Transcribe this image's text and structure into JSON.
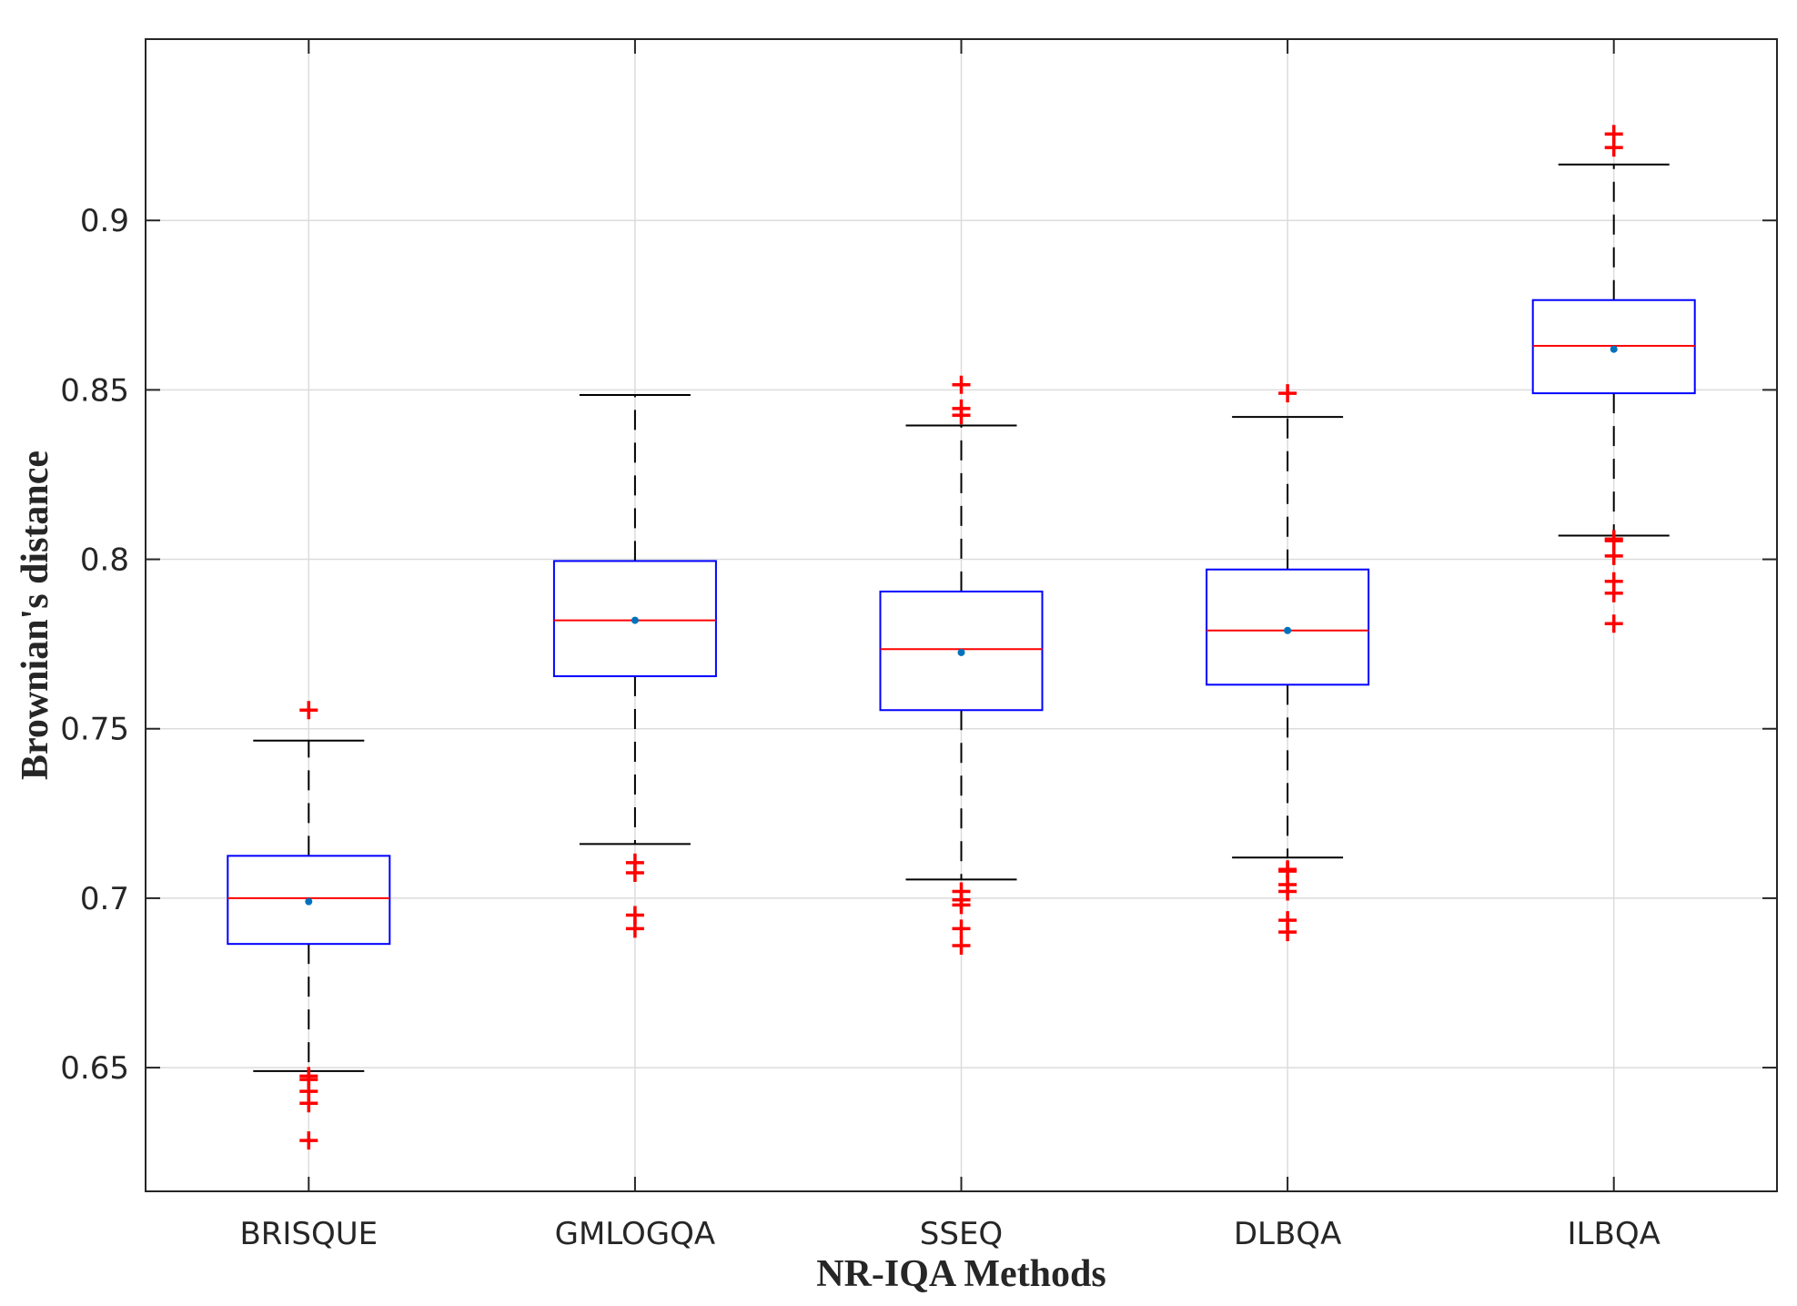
{
  "chart_data": {
    "type": "box",
    "title": "",
    "xlabel": "NR-IQA Methods",
    "ylabel": "Brownian's distance",
    "ylim": [
      0.6135,
      0.9535
    ],
    "yticks": [
      0.65,
      0.7,
      0.75,
      0.8,
      0.85,
      0.9
    ],
    "ytick_labels": [
      "0.65",
      "0.7",
      "0.75",
      "0.8",
      "0.85",
      "0.9"
    ],
    "grid": true,
    "categories": [
      "BRISQUE",
      "GMLOGQA",
      "SSEQ",
      "DLBQA",
      "ILBQA"
    ],
    "boxes": [
      {
        "whisker_low": 0.649,
        "q1": 0.6865,
        "median": 0.7,
        "mean": 0.699,
        "q3": 0.7125,
        "whisker_high": 0.7465,
        "outliers": [
          0.7555,
          0.6475,
          0.6465,
          0.643,
          0.6395,
          0.6285
        ]
      },
      {
        "whisker_low": 0.716,
        "q1": 0.7655,
        "median": 0.782,
        "mean": 0.782,
        "q3": 0.7995,
        "whisker_high": 0.8485,
        "outliers": [
          0.7105,
          0.7075,
          0.695,
          0.691
        ]
      },
      {
        "whisker_low": 0.7055,
        "q1": 0.7555,
        "median": 0.7735,
        "mean": 0.7725,
        "q3": 0.7905,
        "whisker_high": 0.8395,
        "outliers": [
          0.8515,
          0.8445,
          0.8425,
          0.702,
          0.6995,
          0.698,
          0.691,
          0.686
        ]
      },
      {
        "whisker_low": 0.712,
        "q1": 0.763,
        "median": 0.779,
        "mean": 0.779,
        "q3": 0.797,
        "whisker_high": 0.842,
        "outliers": [
          0.849,
          0.7085,
          0.708,
          0.704,
          0.702,
          0.6935,
          0.69
        ]
      },
      {
        "whisker_low": 0.807,
        "q1": 0.849,
        "median": 0.863,
        "mean": 0.862,
        "q3": 0.8765,
        "whisker_high": 0.9165,
        "outliers": [
          0.9255,
          0.9215,
          0.806,
          0.8055,
          0.801,
          0.7935,
          0.79,
          0.781
        ]
      }
    ],
    "colors": {
      "box": "#0000ff",
      "median": "#ff0000",
      "mean": "#0072bd",
      "whisker": "#000000",
      "outlier": "#ff0000",
      "grid": "#dcdcdc",
      "axes": "#262626"
    }
  }
}
